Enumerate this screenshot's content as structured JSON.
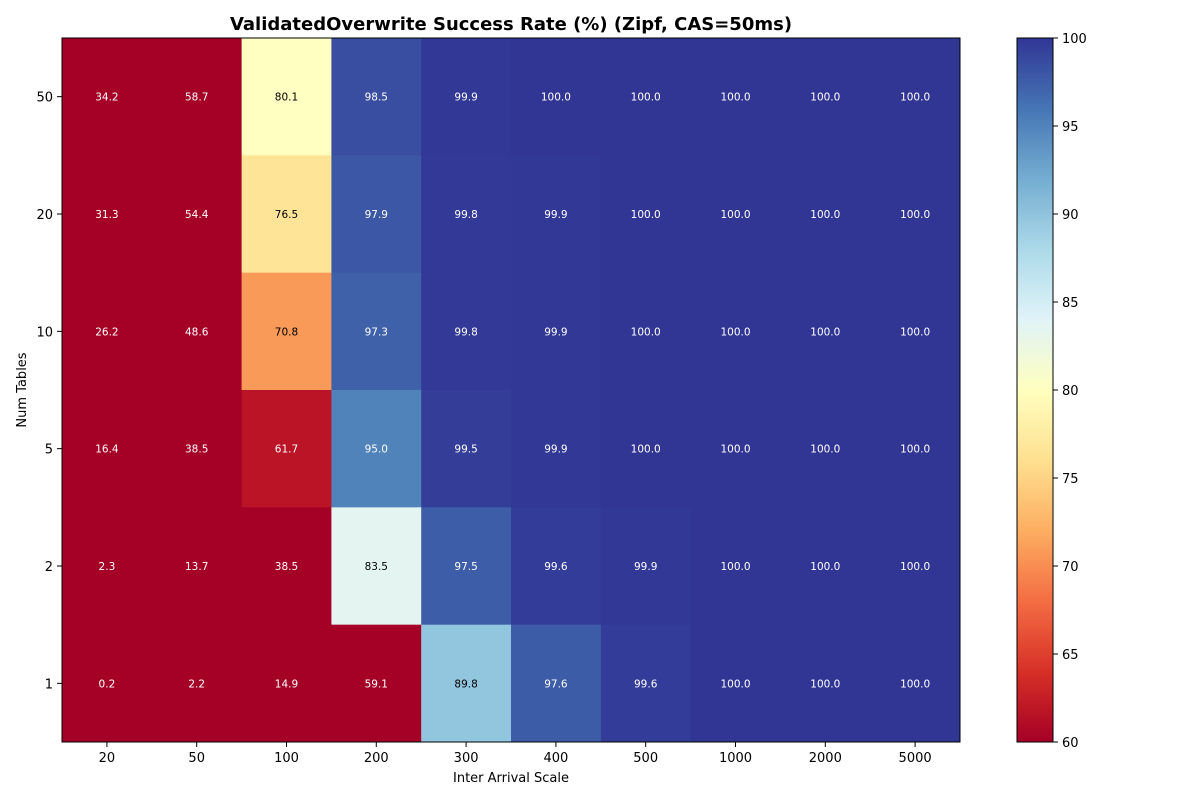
{
  "chart_data": {
    "type": "heatmap",
    "title": "ValidatedOverwrite Success Rate (%) (Zipf, CAS=50ms)",
    "xlabel": "Inter Arrival Scale",
    "ylabel": "Num Tables",
    "x_categories": [
      "20",
      "50",
      "100",
      "200",
      "300",
      "400",
      "500",
      "1000",
      "2000",
      "5000"
    ],
    "y_categories": [
      "50",
      "20",
      "10",
      "5",
      "2",
      "1"
    ],
    "values": [
      [
        34.2,
        58.7,
        80.1,
        98.5,
        99.9,
        100.0,
        100.0,
        100.0,
        100.0,
        100.0
      ],
      [
        31.3,
        54.4,
        76.5,
        97.9,
        99.8,
        99.9,
        100.0,
        100.0,
        100.0,
        100.0
      ],
      [
        26.2,
        48.6,
        70.8,
        97.3,
        99.8,
        99.9,
        100.0,
        100.0,
        100.0,
        100.0
      ],
      [
        16.4,
        38.5,
        61.7,
        95.0,
        99.5,
        99.9,
        100.0,
        100.0,
        100.0,
        100.0
      ],
      [
        2.3,
        13.7,
        38.5,
        83.5,
        97.5,
        99.6,
        99.9,
        100.0,
        100.0,
        100.0
      ],
      [
        0.2,
        2.2,
        14.9,
        59.1,
        89.8,
        97.6,
        99.6,
        100.0,
        100.0,
        100.0
      ]
    ],
    "colormap": "RdYlBu",
    "colormap_stops": [
      "#a50026",
      "#d73027",
      "#f46d43",
      "#fdae61",
      "#fee090",
      "#ffffbf",
      "#e0f3f8",
      "#abd9e9",
      "#74add1",
      "#4575b4",
      "#313695"
    ],
    "vmin": 60,
    "vmax": 100,
    "colorbar_ticks": [
      "60",
      "65",
      "70",
      "75",
      "80",
      "85",
      "90",
      "95",
      "100"
    ],
    "annotations": true
  }
}
